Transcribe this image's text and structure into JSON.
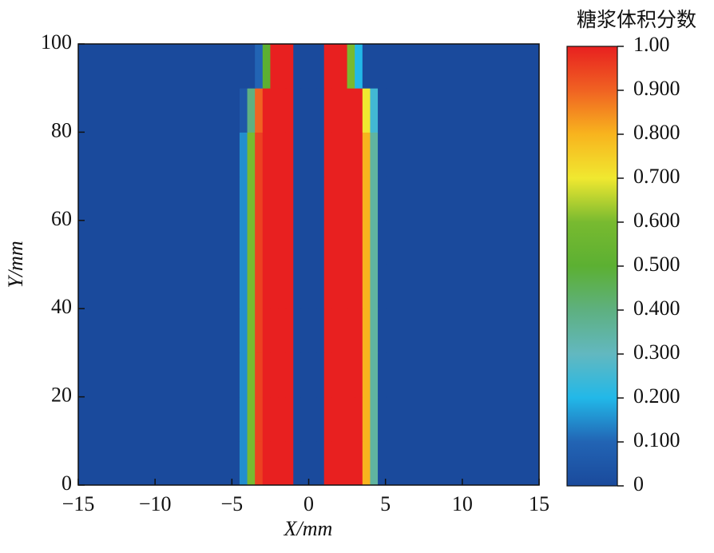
{
  "chart_data": {
    "type": "heatmap",
    "xlabel": "X/mm",
    "ylabel": "Y/mm",
    "xlim": [
      -15,
      15
    ],
    "ylim": [
      0,
      100
    ],
    "xticks": [
      {
        "value": -15,
        "label": "−15"
      },
      {
        "value": -10,
        "label": "−10"
      },
      {
        "value": -5,
        "label": "−5"
      },
      0,
      5,
      10,
      15
    ],
    "yticks": [
      0,
      20,
      40,
      60,
      80,
      100
    ],
    "background_color": "#1a4a9c",
    "x": [
      -4.75,
      -4.25,
      -3.75,
      -3.25,
      -2.75,
      -2.25,
      -1.75,
      -1.25,
      -0.75,
      -0.25,
      0.25,
      0.75,
      1.25,
      1.75,
      2.25,
      2.75,
      3.25,
      3.75,
      4.25,
      4.75
    ],
    "y": [
      5,
      15,
      25,
      35,
      45,
      55,
      65,
      75,
      85,
      95
    ],
    "z": [
      [
        0,
        0.15,
        0.6,
        0.95,
        1,
        1,
        1,
        1,
        0,
        0,
        0,
        0,
        1,
        1,
        1,
        1,
        1,
        0.8,
        0.35,
        0
      ],
      [
        0,
        0.15,
        0.6,
        0.95,
        1,
        1,
        1,
        1,
        0,
        0,
        0,
        0,
        1,
        1,
        1,
        1,
        1,
        0.8,
        0.35,
        0
      ],
      [
        0,
        0.15,
        0.6,
        0.95,
        1,
        1,
        1,
        1,
        0,
        0,
        0,
        0,
        1,
        1,
        1,
        1,
        1,
        0.8,
        0.35,
        0
      ],
      [
        0,
        0.15,
        0.6,
        0.95,
        1,
        1,
        1,
        1,
        0,
        0,
        0,
        0,
        1,
        1,
        1,
        1,
        1,
        0.8,
        0.35,
        0
      ],
      [
        0,
        0.15,
        0.6,
        0.95,
        1,
        1,
        1,
        1,
        0,
        0,
        0,
        0,
        1,
        1,
        1,
        1,
        1,
        0.8,
        0.35,
        0
      ],
      [
        0,
        0.15,
        0.6,
        0.95,
        1,
        1,
        1,
        1,
        0,
        0,
        0,
        0,
        1,
        1,
        1,
        1,
        1,
        0.8,
        0.35,
        0
      ],
      [
        0,
        0.15,
        0.6,
        0.95,
        1,
        1,
        1,
        1,
        0,
        0,
        0,
        0,
        1,
        1,
        1,
        1,
        1,
        0.8,
        0.35,
        0
      ],
      [
        0,
        0.15,
        0.6,
        0.95,
        1,
        1,
        1,
        1,
        0,
        0,
        0,
        0,
        1,
        1,
        1,
        1,
        1,
        0.8,
        0.35,
        0
      ],
      [
        0,
        0.05,
        0.4,
        0.9,
        1,
        1,
        1,
        1,
        0,
        0,
        0,
        0,
        1,
        1,
        1,
        1,
        1,
        0.7,
        0.25,
        0
      ],
      [
        0,
        0,
        0,
        0.1,
        0.5,
        1,
        1,
        1,
        0,
        0,
        0,
        0,
        1,
        1,
        1,
        0.6,
        0.2,
        0,
        0,
        0
      ]
    ],
    "colorbar_title": "糖浆体积分数",
    "colorbar_ticks": [
      0,
      {
        "value": 0.1,
        "label": "0.100"
      },
      {
        "value": 0.2,
        "label": "0.200"
      },
      {
        "value": 0.3,
        "label": "0.300"
      },
      {
        "value": 0.4,
        "label": "0.400"
      },
      {
        "value": 0.5,
        "label": "0.500"
      },
      {
        "value": 0.6,
        "label": "0.600"
      },
      {
        "value": 0.7,
        "label": "0.700"
      },
      {
        "value": 0.8,
        "label": "0.800"
      },
      {
        "value": 0.9,
        "label": "0.900"
      },
      {
        "value": 1,
        "label": "1.00"
      }
    ],
    "colorbar_lim": [
      0,
      1
    ],
    "colormap": [
      {
        "value": 0,
        "color": "#1a4a9c"
      },
      {
        "value": 0.1,
        "color": "#2264b4"
      },
      {
        "value": 0.2,
        "color": "#22b8e8"
      },
      {
        "value": 0.3,
        "color": "#62b8c0"
      },
      {
        "value": 0.4,
        "color": "#5eb080"
      },
      {
        "value": 0.5,
        "color": "#5cb032"
      },
      {
        "value": 0.6,
        "color": "#78ba30"
      },
      {
        "value": 0.7,
        "color": "#f0e830"
      },
      {
        "value": 0.8,
        "color": "#f8b41e"
      },
      {
        "value": 0.9,
        "color": "#f06222"
      },
      {
        "value": 1,
        "color": "#e82020"
      }
    ]
  }
}
